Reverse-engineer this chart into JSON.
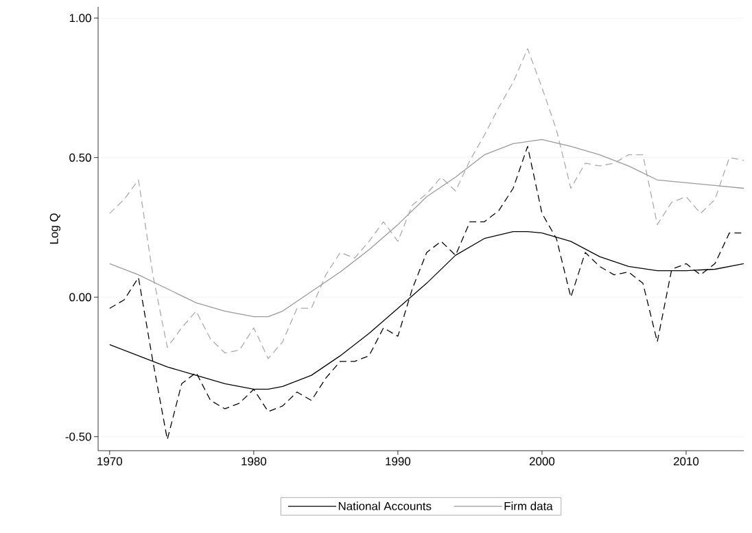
{
  "chart_data": {
    "type": "line",
    "ylabel": "Log Q",
    "xlim": [
      1969.2,
      2014
    ],
    "ylim": [
      -0.55,
      1.04
    ],
    "xticks": [
      1970,
      1980,
      1990,
      2000,
      2010
    ],
    "yticks": [
      {
        "value": -0.5,
        "label": "-0.50"
      },
      {
        "value": 0,
        "label": "0.00"
      },
      {
        "value": 0.5,
        "label": "0.50"
      },
      {
        "value": 1,
        "label": "1.00"
      }
    ],
    "grid": "y",
    "legend": "bottom",
    "marker": "none",
    "series": [
      {
        "name": "National Accounts",
        "color": "#000000",
        "line_style": "solid",
        "x": [
          1970,
          1972,
          1974,
          1976,
          1978,
          1980,
          1981,
          1982,
          1984,
          1986,
          1988,
          1990,
          1992,
          1994,
          1996,
          1998,
          1999,
          2000,
          2002,
          2004,
          2006,
          2008,
          2010,
          2012,
          2014
        ],
        "values": [
          -0.17,
          -0.21,
          -0.25,
          -0.28,
          -0.31,
          -0.33,
          -0.33,
          -0.32,
          -0.28,
          -0.21,
          -0.13,
          -0.04,
          0.05,
          0.15,
          0.21,
          0.235,
          0.235,
          0.23,
          0.2,
          0.145,
          0.11,
          0.095,
          0.095,
          0.1,
          0.12
        ]
      },
      {
        "name": "Firm data",
        "color": "#999999",
        "line_style": "solid",
        "x": [
          1970,
          1972,
          1974,
          1976,
          1978,
          1980,
          1981,
          1982,
          1984,
          1986,
          1988,
          1990,
          1992,
          1994,
          1996,
          1998,
          2000,
          2002,
          2004,
          2006,
          2008,
          2010,
          2012,
          2014
        ],
        "values": [
          0.12,
          0.08,
          0.03,
          -0.02,
          -0.05,
          -0.07,
          -0.07,
          -0.05,
          0.02,
          0.09,
          0.17,
          0.26,
          0.36,
          0.43,
          0.51,
          0.55,
          0.565,
          0.54,
          0.51,
          0.47,
          0.42,
          0.41,
          0.4,
          0.39
        ]
      },
      {
        "color": "#000000",
        "line_style": "dashed",
        "x": [
          1970,
          1971,
          1972,
          1973,
          1974,
          1975,
          1976,
          1977,
          1978,
          1979,
          1980,
          1981,
          1982,
          1983,
          1984,
          1985,
          1986,
          1987,
          1988,
          1989,
          1990,
          1991,
          1992,
          1993,
          1994,
          1995,
          1996,
          1997,
          1998,
          1999,
          2000,
          2001,
          2002,
          2003,
          2004,
          2005,
          2006,
          2007,
          2008,
          2009,
          2010,
          2011,
          2012,
          2013,
          2014
        ],
        "values": [
          -0.04,
          -0.01,
          0.07,
          -0.23,
          -0.51,
          -0.31,
          -0.27,
          -0.37,
          -0.4,
          -0.38,
          -0.33,
          -0.41,
          -0.39,
          -0.34,
          -0.37,
          -0.29,
          -0.23,
          -0.23,
          -0.21,
          -0.11,
          -0.14,
          0.03,
          0.16,
          0.2,
          0.15,
          0.27,
          0.27,
          0.31,
          0.39,
          0.54,
          0.3,
          0.21,
          0.0,
          0.16,
          0.11,
          0.08,
          0.09,
          0.05,
          -0.16,
          0.1,
          0.12,
          0.08,
          0.12,
          0.23,
          0.23
        ]
      },
      {
        "color": "#aaaaaa",
        "line_style": "dashed",
        "x": [
          1970,
          1971,
          1972,
          1973,
          1974,
          1975,
          1976,
          1977,
          1978,
          1979,
          1980,
          1981,
          1982,
          1983,
          1984,
          1985,
          1986,
          1987,
          1988,
          1989,
          1990,
          1991,
          1992,
          1993,
          1994,
          1995,
          1996,
          1997,
          1998,
          1999,
          2000,
          2001,
          2002,
          2003,
          2004,
          2005,
          2006,
          2007,
          2008,
          2009,
          2010,
          2011,
          2012,
          2013,
          2014
        ],
        "values": [
          0.3,
          0.35,
          0.42,
          0.08,
          -0.18,
          -0.11,
          -0.05,
          -0.15,
          -0.2,
          -0.19,
          -0.11,
          -0.22,
          -0.16,
          -0.04,
          -0.04,
          0.08,
          0.16,
          0.14,
          0.2,
          0.27,
          0.2,
          0.33,
          0.37,
          0.43,
          0.38,
          0.49,
          0.58,
          0.68,
          0.77,
          0.89,
          0.75,
          0.6,
          0.39,
          0.48,
          0.47,
          0.48,
          0.51,
          0.51,
          0.26,
          0.34,
          0.36,
          0.3,
          0.35,
          0.5,
          0.49
        ]
      }
    ]
  }
}
